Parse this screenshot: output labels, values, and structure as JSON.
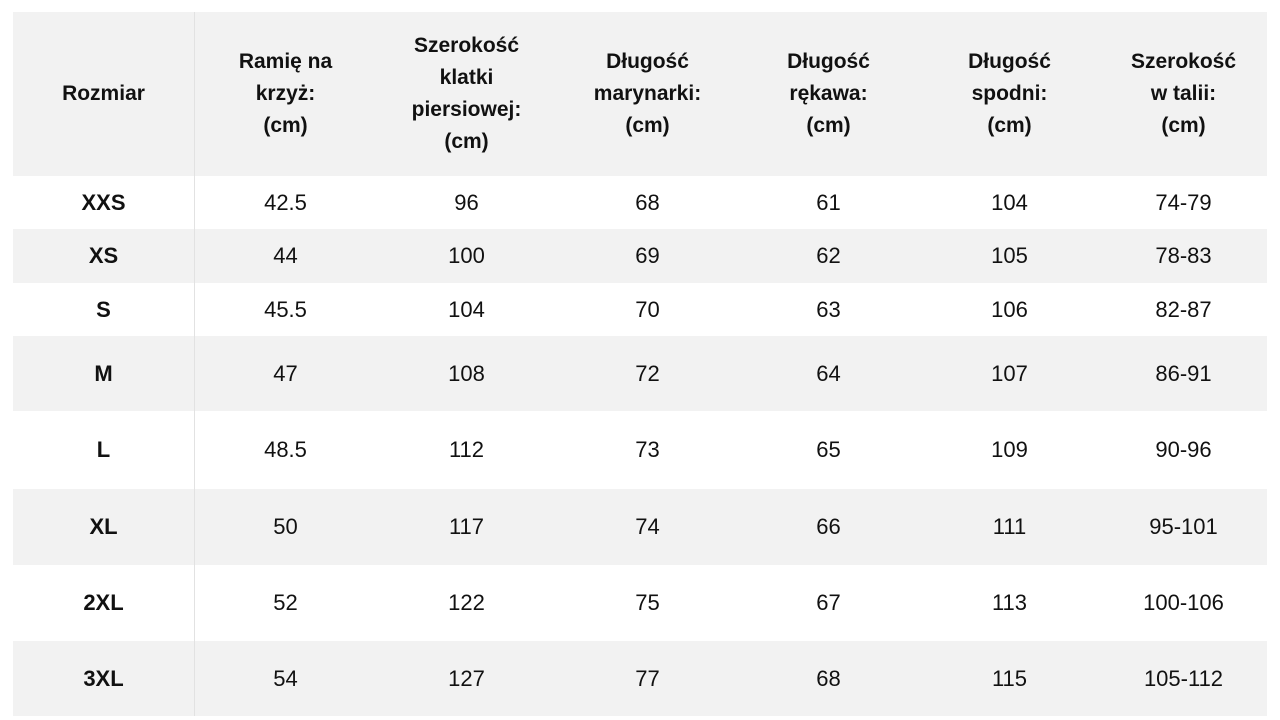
{
  "table": {
    "header": [
      [
        "Rozmiar"
      ],
      [
        "Ramię na",
        "krzyż:",
        "(cm)"
      ],
      [
        "Szerokość",
        "klatki",
        "piersiowej:",
        "(cm)"
      ],
      [
        "Długość",
        "marynarki:",
        "(cm)"
      ],
      [
        "Długość",
        "rękawa:",
        "(cm)"
      ],
      [
        "Długość",
        "spodni:",
        "(cm)"
      ],
      [
        "Szerokość",
        "w talii:",
        "(cm)"
      ]
    ],
    "rows": [
      [
        "XXS",
        "42.5",
        "96",
        "68",
        "61",
        "104",
        "74-79"
      ],
      [
        "XS",
        "44",
        "100",
        "69",
        "62",
        "105",
        "78-83"
      ],
      [
        "S",
        "45.5",
        "104",
        "70",
        "63",
        "106",
        "82-87"
      ],
      [
        "M",
        "47",
        "108",
        "72",
        "64",
        "107",
        "86-91"
      ],
      [
        "L",
        "48.5",
        "112",
        "73",
        "65",
        "109",
        "90-96"
      ],
      [
        "XL",
        "50",
        "117",
        "74",
        "66",
        "111",
        "95-101"
      ],
      [
        "2XL",
        "52",
        "122",
        "75",
        "67",
        "113",
        "100-106"
      ],
      [
        "3XL",
        "54",
        "127",
        "77",
        "68",
        "115",
        "105-112"
      ]
    ]
  }
}
